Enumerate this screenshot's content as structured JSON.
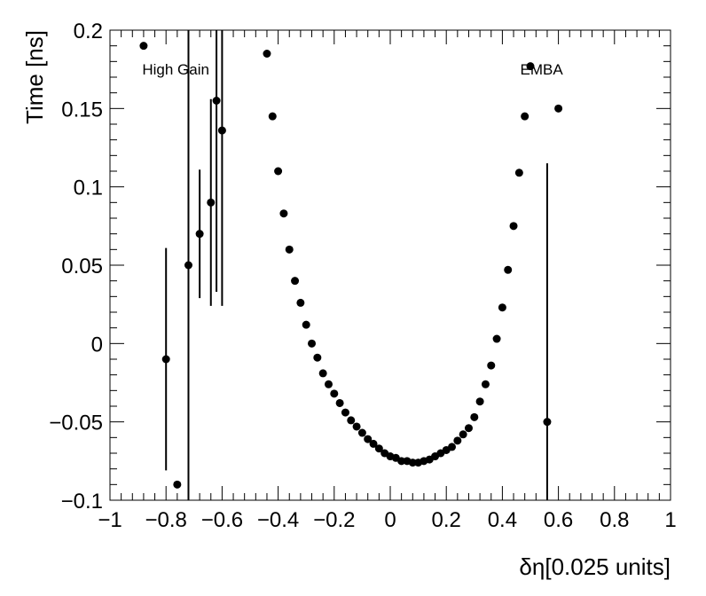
{
  "chart_data": {
    "type": "scatter",
    "title": "",
    "xlabel": "δη[0.025 units]",
    "ylabel": "Time [ns]",
    "xlim": [
      -1,
      1
    ],
    "ylim": [
      -0.1,
      0.2
    ],
    "grid": false,
    "legend": "none",
    "marker_color": "#000000",
    "x_ticks": [
      {
        "value": -1,
        "label": "−1"
      },
      {
        "value": -0.8,
        "label": "−0.8"
      },
      {
        "value": -0.6,
        "label": "−0.6"
      },
      {
        "value": -0.4,
        "label": "−0.4"
      },
      {
        "value": -0.2,
        "label": "−0.2"
      },
      {
        "value": 0,
        "label": "0"
      },
      {
        "value": 0.2,
        "label": "0.2"
      },
      {
        "value": 0.4,
        "label": "0.4"
      },
      {
        "value": 0.6,
        "label": "0.6"
      },
      {
        "value": 0.8,
        "label": "0.8"
      },
      {
        "value": 1,
        "label": "1"
      }
    ],
    "y_ticks": [
      {
        "value": -0.1,
        "label": "−0.1"
      },
      {
        "value": -0.05,
        "label": "−0.05"
      },
      {
        "value": 0,
        "label": "0"
      },
      {
        "value": 0.05,
        "label": "0.05"
      },
      {
        "value": 0.1,
        "label": "0.1"
      },
      {
        "value": 0.15,
        "label": "0.15"
      },
      {
        "value": 0.2,
        "label": "0.2"
      }
    ],
    "annotations": [
      {
        "text": "High Gain",
        "x": -0.885,
        "y": 0.175,
        "anchor": "start"
      },
      {
        "text": "EMBA",
        "x": 0.54,
        "y": 0.175,
        "anchor": "middle"
      }
    ],
    "series": [
      {
        "points": [
          {
            "x": -0.88,
            "y": 0.19
          },
          {
            "x": -0.8,
            "y": -0.01,
            "ylo": -0.081,
            "yhi": 0.061
          },
          {
            "x": -0.76,
            "y": -0.09
          },
          {
            "x": -0.72,
            "y": 0.05,
            "ylo": -0.1,
            "yhi": 0.2
          },
          {
            "x": -0.68,
            "y": 0.07,
            "ylo": 0.029,
            "yhi": 0.111
          },
          {
            "x": -0.64,
            "y": 0.09,
            "ylo": 0.024,
            "yhi": 0.156
          },
          {
            "x": -0.62,
            "y": 0.155,
            "ylo": 0.033,
            "yhi": 0.2
          },
          {
            "x": -0.6,
            "y": 0.136,
            "ylo": 0.024,
            "yhi": 0.2
          },
          {
            "x": -0.44,
            "y": 0.185
          },
          {
            "x": -0.42,
            "y": 0.145
          },
          {
            "x": -0.4,
            "y": 0.11
          },
          {
            "x": -0.38,
            "y": 0.083
          },
          {
            "x": -0.36,
            "y": 0.06
          },
          {
            "x": -0.34,
            "y": 0.04
          },
          {
            "x": -0.32,
            "y": 0.026
          },
          {
            "x": -0.3,
            "y": 0.012
          },
          {
            "x": -0.28,
            "y": 0.0
          },
          {
            "x": -0.26,
            "y": -0.009
          },
          {
            "x": -0.24,
            "y": -0.019
          },
          {
            "x": -0.22,
            "y": -0.026
          },
          {
            "x": -0.2,
            "y": -0.032
          },
          {
            "x": -0.18,
            "y": -0.038
          },
          {
            "x": -0.16,
            "y": -0.044
          },
          {
            "x": -0.14,
            "y": -0.049
          },
          {
            "x": -0.12,
            "y": -0.053
          },
          {
            "x": -0.1,
            "y": -0.057
          },
          {
            "x": -0.08,
            "y": -0.061
          },
          {
            "x": -0.06,
            "y": -0.064
          },
          {
            "x": -0.04,
            "y": -0.067
          },
          {
            "x": -0.02,
            "y": -0.07
          },
          {
            "x": 0.0,
            "y": -0.072
          },
          {
            "x": 0.02,
            "y": -0.073
          },
          {
            "x": 0.04,
            "y": -0.075
          },
          {
            "x": 0.06,
            "y": -0.075
          },
          {
            "x": 0.08,
            "y": -0.076
          },
          {
            "x": 0.1,
            "y": -0.076
          },
          {
            "x": 0.12,
            "y": -0.075
          },
          {
            "x": 0.14,
            "y": -0.074
          },
          {
            "x": 0.16,
            "y": -0.072
          },
          {
            "x": 0.18,
            "y": -0.07
          },
          {
            "x": 0.2,
            "y": -0.068
          },
          {
            "x": 0.22,
            "y": -0.066
          },
          {
            "x": 0.24,
            "y": -0.062
          },
          {
            "x": 0.26,
            "y": -0.058
          },
          {
            "x": 0.28,
            "y": -0.054
          },
          {
            "x": 0.3,
            "y": -0.047
          },
          {
            "x": 0.32,
            "y": -0.037
          },
          {
            "x": 0.34,
            "y": -0.026
          },
          {
            "x": 0.36,
            "y": -0.014
          },
          {
            "x": 0.38,
            "y": 0.003
          },
          {
            "x": 0.4,
            "y": 0.023
          },
          {
            "x": 0.42,
            "y": 0.047
          },
          {
            "x": 0.44,
            "y": 0.075
          },
          {
            "x": 0.46,
            "y": 0.109
          },
          {
            "x": 0.48,
            "y": 0.145
          },
          {
            "x": 0.5,
            "y": 0.177
          },
          {
            "x": 0.56,
            "y": -0.05,
            "ylo": -0.1,
            "yhi": 0.115
          },
          {
            "x": 0.6,
            "y": 0.15
          }
        ]
      }
    ]
  }
}
